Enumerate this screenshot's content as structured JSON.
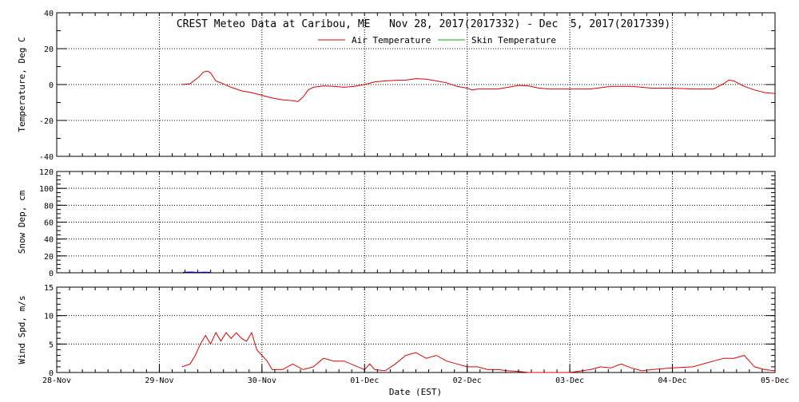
{
  "title": "CREST Meteo Data at Caribou, ME   Nov 28, 2017(2017332) - Dec  5, 2017(2017339)",
  "legend": [
    {
      "label": "Air Temperature",
      "color": "#e00000"
    },
    {
      "label": "Skin Temperature",
      "color": "#00b000"
    }
  ],
  "xlabel": "Date (EST)",
  "x_ticks": [
    "28-Nov",
    "29-Nov",
    "30-Nov",
    "01-Dec",
    "02-Dec",
    "03-Dec",
    "04-Dec",
    "05-Dec"
  ],
  "chart_data": [
    {
      "type": "line",
      "ylabel": "Temperature, Deg C",
      "ylim": [
        -40,
        40
      ],
      "y_ticks": [
        "40",
        "20",
        "0",
        "-20",
        "-40"
      ],
      "x_unit": "days since 28-Nov 00:00",
      "series": [
        {
          "name": "Air Temperature",
          "color": "#e00000",
          "x": [
            1.22,
            1.3,
            1.38,
            1.43,
            1.47,
            1.5,
            1.55,
            1.6,
            1.7,
            1.8,
            1.9,
            2.0,
            2.1,
            2.2,
            2.3,
            2.35,
            2.4,
            2.45,
            2.5,
            2.6,
            2.7,
            2.8,
            2.9,
            3.0,
            3.1,
            3.2,
            3.3,
            3.4,
            3.5,
            3.6,
            3.7,
            3.8,
            3.9,
            4.0,
            4.05,
            4.1,
            4.2,
            4.3,
            4.4,
            4.5,
            4.6,
            4.7,
            4.8,
            4.9,
            5.0,
            5.2,
            5.4,
            5.6,
            5.8,
            6.0,
            6.2,
            6.3,
            6.4,
            6.5,
            6.55,
            6.6,
            6.7,
            6.8,
            6.9,
            7.0
          ],
          "values": [
            0,
            0.5,
            4,
            7,
            7.5,
            6.5,
            2,
            1,
            -1.5,
            -3.5,
            -4.5,
            -6,
            -7.5,
            -8.5,
            -9,
            -9.5,
            -7,
            -3,
            -1.5,
            -0.8,
            -1,
            -1.5,
            -1,
            0,
            1.5,
            2,
            2.3,
            2.5,
            3.3,
            3,
            2,
            1,
            -1,
            -2,
            -3,
            -2.5,
            -2.5,
            -2.5,
            -1.5,
            -0.5,
            -0.8,
            -2,
            -2.5,
            -2.5,
            -2.5,
            -2.5,
            -1,
            -1,
            -2,
            -2,
            -2.5,
            -2.5,
            -2.5,
            0.5,
            2.5,
            2,
            -1,
            -3,
            -4.5,
            -5
          ]
        },
        {
          "name": "Skin Temperature",
          "color": "#00b000",
          "x": [],
          "values": []
        }
      ]
    },
    {
      "type": "line",
      "ylabel": "Snow Dep, cm",
      "ylim": [
        0,
        120
      ],
      "y_ticks": [
        "120",
        "100",
        "80",
        "60",
        "40",
        "20",
        "0"
      ],
      "x_unit": "days since 28-Nov 00:00",
      "series": [
        {
          "color": "#0000cc",
          "x": [
            1.23,
            1.3,
            1.38,
            1.45,
            1.5
          ],
          "values": [
            0.6,
            0.9,
            0.5,
            0.8,
            0.6
          ]
        }
      ]
    },
    {
      "type": "line",
      "ylabel": "Wind Spd, m/s",
      "ylim": [
        0,
        15
      ],
      "y_ticks": [
        "15",
        "10",
        "5",
        "0"
      ],
      "x_unit": "days since 28-Nov 00:00",
      "series": [
        {
          "color": "#e00000",
          "x": [
            1.22,
            1.3,
            1.35,
            1.4,
            1.45,
            1.5,
            1.55,
            1.6,
            1.65,
            1.7,
            1.75,
            1.8,
            1.85,
            1.9,
            1.95,
            2.0,
            2.05,
            2.1,
            2.2,
            2.3,
            2.4,
            2.5,
            2.6,
            2.7,
            2.8,
            3.0,
            3.05,
            3.1,
            3.2,
            3.3,
            3.4,
            3.5,
            3.6,
            3.7,
            3.8,
            3.9,
            4.0,
            4.1,
            4.2,
            4.3,
            4.4,
            4.5,
            4.6,
            4.7,
            4.8,
            4.9,
            5.0,
            5.2,
            5.3,
            5.4,
            5.5,
            5.6,
            5.7,
            5.8,
            6.0,
            6.2,
            6.4,
            6.5,
            6.6,
            6.7,
            6.8,
            6.9,
            7.0
          ],
          "values": [
            1,
            1.5,
            3,
            5,
            6.5,
            5,
            7,
            5.5,
            7,
            6,
            7,
            6,
            5.5,
            7,
            4,
            3,
            2,
            0.5,
            0.5,
            1.5,
            0.5,
            1,
            2.5,
            2,
            2,
            0.5,
            1.5,
            0.5,
            0.3,
            1.5,
            3,
            3.5,
            2.5,
            3,
            2,
            1.5,
            1,
            1,
            0.5,
            0.5,
            0.3,
            0.2,
            0,
            0,
            0,
            0,
            0,
            0.5,
            1,
            0.8,
            1.5,
            0.8,
            0.3,
            0.5,
            0.8,
            1,
            2,
            2.5,
            2.5,
            3,
            1,
            0.5,
            0.3
          ]
        }
      ]
    }
  ]
}
